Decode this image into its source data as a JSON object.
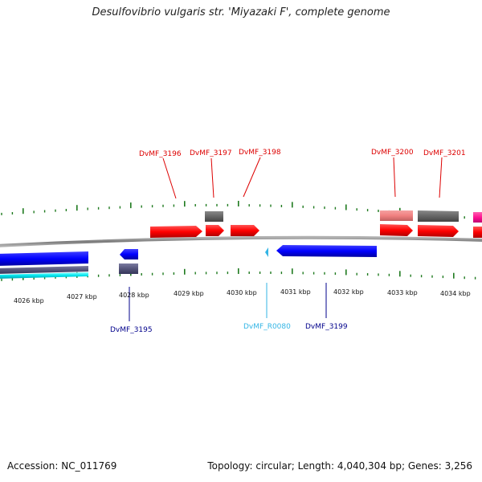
{
  "title": "Desulfovibrio vulgaris str. 'Miyazaki F', complete genome",
  "footer": {
    "accession": "Accession: NC_011769",
    "summary": "Topology: circular; Length: 4,040,304 bp; Genes: 3,256"
  },
  "colors": {
    "backbone": "#8a8a8a",
    "tick": "#1f7a1f",
    "forward_label": "#dd0000",
    "reverse_label": "#00008b",
    "rna_label": "#33b5e5"
  },
  "ticks_kbp": [
    "4026 kbp",
    "4027 kbp",
    "4028 kbp",
    "4029 kbp",
    "4030 kbp",
    "4031 kbp",
    "4032 kbp",
    "4033 kbp",
    "4034 kbp"
  ],
  "labels": {
    "forward": [
      "DvMF_3196",
      "DvMF_3197",
      "DvMF_3198",
      "DvMF_3200",
      "DvMF_3201"
    ],
    "reverse": [
      "DvMF_3195",
      "DvMF_R0080",
      "DvMF_3199"
    ]
  },
  "features": [
    {
      "name": "forward-cds-3196",
      "strand": "+",
      "color": "#ff0000"
    },
    {
      "name": "forward-cds-3197",
      "strand": "+",
      "color": "#ff0000"
    },
    {
      "name": "forward-cds-3198",
      "strand": "+",
      "color": "#ff0000"
    },
    {
      "name": "forward-cds-3200",
      "strand": "+",
      "color": "#ff0000"
    },
    {
      "name": "forward-cds-3201",
      "strand": "+",
      "color": "#ff0000"
    },
    {
      "name": "forward-cds-edge",
      "strand": "+",
      "color": "#ff0000"
    },
    {
      "name": "forward-feature-3197-grey",
      "strand": "+",
      "color": "#666666"
    },
    {
      "name": "forward-feature-3200-pink",
      "strand": "+",
      "color": "#f08080"
    },
    {
      "name": "forward-feature-3201-grey",
      "strand": "+",
      "color": "#666666"
    },
    {
      "name": "forward-feature-edge-magenta",
      "strand": "+",
      "color": "#ff1493"
    },
    {
      "name": "reverse-cds-left",
      "strand": "-",
      "color": "#0000ff"
    },
    {
      "name": "reverse-feature-left-slate",
      "strand": "-",
      "color": "#55557a"
    },
    {
      "name": "reverse-feature-left-cyan",
      "strand": "-",
      "color": "#00e5ee"
    },
    {
      "name": "reverse-cds-3195",
      "strand": "-",
      "color": "#0000ff"
    },
    {
      "name": "reverse-feature-3195-slate",
      "strand": "-",
      "color": "#55557a"
    },
    {
      "name": "reverse-rna-r0080",
      "strand": "-",
      "color": "#33b5e5"
    },
    {
      "name": "reverse-cds-3199",
      "strand": "-",
      "color": "#0000ff"
    }
  ]
}
